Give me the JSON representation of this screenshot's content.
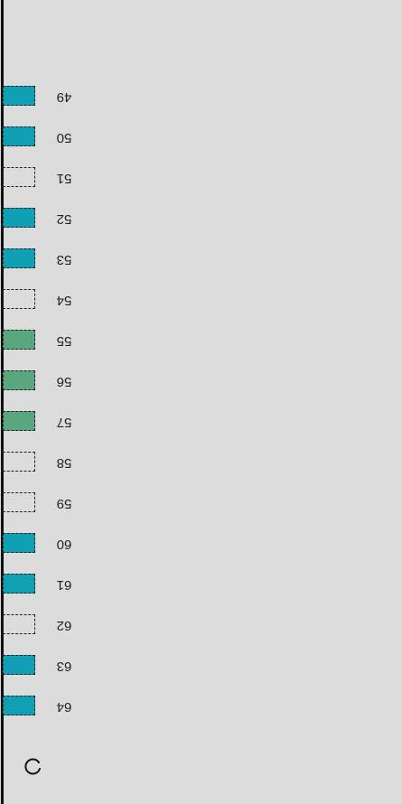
{
  "colors": {
    "background": "#dcdcdc",
    "available": "#0fa0b4",
    "selected": "#5aa67e",
    "empty": "transparent",
    "border": "#222222"
  },
  "seats": [
    {
      "label": "49",
      "status": "available"
    },
    {
      "label": "50",
      "status": "available"
    },
    {
      "label": "51",
      "status": "empty"
    },
    {
      "label": "52",
      "status": "available"
    },
    {
      "label": "53",
      "status": "available"
    },
    {
      "label": "54",
      "status": "empty"
    },
    {
      "label": "55",
      "status": "selected"
    },
    {
      "label": "56",
      "status": "selected"
    },
    {
      "label": "57",
      "status": "selected"
    },
    {
      "label": "58",
      "status": "empty"
    },
    {
      "label": "59",
      "status": "empty"
    },
    {
      "label": "60",
      "status": "available"
    },
    {
      "label": "61",
      "status": "available"
    },
    {
      "label": "62",
      "status": "empty"
    },
    {
      "label": "63",
      "status": "available"
    },
    {
      "label": "64",
      "status": "available"
    }
  ],
  "icons": {
    "refresh": "refresh-icon"
  }
}
